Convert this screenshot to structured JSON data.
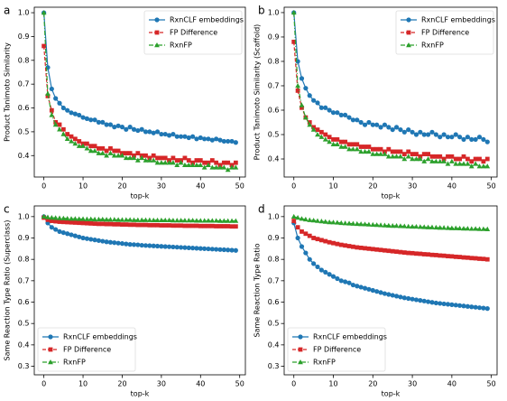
{
  "chart_data": [
    {
      "type": "line",
      "panel": "a",
      "xlabel": "top-k",
      "ylabel": "Product Tanimoto Similarity",
      "x": [
        0,
        1,
        2,
        3,
        4,
        5,
        6,
        7,
        8,
        9,
        10,
        11,
        12,
        13,
        14,
        15,
        16,
        17,
        18,
        19,
        20,
        21,
        22,
        23,
        24,
        25,
        26,
        27,
        28,
        29,
        30,
        31,
        32,
        33,
        34,
        35,
        36,
        37,
        38,
        39,
        40,
        41,
        42,
        43,
        44,
        45,
        46,
        47,
        48,
        49
      ],
      "xlim": [
        -2.45,
        51.45
      ],
      "xticks": [
        0,
        10,
        20,
        30,
        40,
        50
      ],
      "ylim": [
        0.31,
        1.023
      ],
      "yticks": [
        0.4,
        0.5,
        0.6,
        0.7,
        0.8,
        0.9,
        {
          "value": 1,
          "label": "1.0"
        }
      ],
      "legend": "upper right",
      "series": [
        {
          "name": "RxnCLF embeddings",
          "color": "#1f77b4",
          "marker": "circle",
          "dash": "solid",
          "values": [
            1.0,
            0.77,
            0.68,
            0.64,
            0.62,
            0.6,
            0.59,
            0.58,
            0.575,
            0.57,
            0.56,
            0.555,
            0.55,
            0.55,
            0.54,
            0.54,
            0.53,
            0.53,
            0.52,
            0.525,
            0.52,
            0.51,
            0.52,
            0.51,
            0.505,
            0.51,
            0.5,
            0.5,
            0.495,
            0.5,
            0.49,
            0.49,
            0.485,
            0.49,
            0.48,
            0.48,
            0.48,
            0.475,
            0.48,
            0.47,
            0.475,
            0.47,
            0.47,
            0.465,
            0.47,
            0.465,
            0.46,
            0.46,
            0.46,
            0.455
          ]
        },
        {
          "name": "FP Difference",
          "color": "#d62728",
          "marker": "square",
          "dash": "dashed",
          "values": [
            0.86,
            0.65,
            0.59,
            0.54,
            0.53,
            0.51,
            0.49,
            0.48,
            0.47,
            0.46,
            0.45,
            0.45,
            0.44,
            0.44,
            0.43,
            0.43,
            0.42,
            0.43,
            0.42,
            0.42,
            0.41,
            0.41,
            0.41,
            0.4,
            0.41,
            0.4,
            0.4,
            0.39,
            0.4,
            0.39,
            0.39,
            0.39,
            0.38,
            0.39,
            0.38,
            0.38,
            0.39,
            0.38,
            0.37,
            0.38,
            0.38,
            0.37,
            0.37,
            0.38,
            0.37,
            0.36,
            0.37,
            0.37,
            0.36,
            0.37
          ]
        },
        {
          "name": "RxnFP",
          "color": "#2ca02c",
          "marker": "triangle",
          "dash": "dashdot",
          "values": [
            1.0,
            0.66,
            0.57,
            0.53,
            0.51,
            0.49,
            0.47,
            0.46,
            0.45,
            0.44,
            0.44,
            0.43,
            0.42,
            0.42,
            0.41,
            0.41,
            0.4,
            0.41,
            0.4,
            0.4,
            0.4,
            0.39,
            0.39,
            0.39,
            0.38,
            0.39,
            0.38,
            0.38,
            0.38,
            0.37,
            0.37,
            0.37,
            0.37,
            0.37,
            0.36,
            0.37,
            0.36,
            0.36,
            0.36,
            0.36,
            0.36,
            0.35,
            0.36,
            0.35,
            0.35,
            0.35,
            0.35,
            0.34,
            0.35,
            0.35
          ]
        }
      ]
    },
    {
      "type": "line",
      "panel": "b",
      "xlabel": "top-k",
      "ylabel": "Product Tanimoto Similarity (Scaffold)",
      "x": [
        0,
        1,
        2,
        3,
        4,
        5,
        6,
        7,
        8,
        9,
        10,
        11,
        12,
        13,
        14,
        15,
        16,
        17,
        18,
        19,
        20,
        21,
        22,
        23,
        24,
        25,
        26,
        27,
        28,
        29,
        30,
        31,
        32,
        33,
        34,
        35,
        36,
        37,
        38,
        39,
        40,
        41,
        42,
        43,
        44,
        45,
        46,
        47,
        48,
        49
      ],
      "xlim": [
        -2.45,
        51.45
      ],
      "xticks": [
        0,
        10,
        20,
        30,
        40,
        50
      ],
      "ylim": [
        0.326,
        1.022
      ],
      "yticks": [
        0.4,
        0.5,
        0.6,
        0.7,
        0.8,
        0.9,
        {
          "value": 1,
          "label": "1.0"
        }
      ],
      "legend": "upper right",
      "series": [
        {
          "name": "RxnCLF embeddings",
          "color": "#1f77b4",
          "marker": "circle",
          "dash": "solid",
          "values": [
            1.0,
            0.8,
            0.73,
            0.69,
            0.66,
            0.64,
            0.63,
            0.61,
            0.61,
            0.6,
            0.59,
            0.59,
            0.58,
            0.58,
            0.57,
            0.56,
            0.56,
            0.55,
            0.54,
            0.55,
            0.54,
            0.54,
            0.53,
            0.54,
            0.53,
            0.52,
            0.53,
            0.52,
            0.51,
            0.52,
            0.51,
            0.5,
            0.51,
            0.5,
            0.5,
            0.51,
            0.5,
            0.49,
            0.5,
            0.49,
            0.49,
            0.5,
            0.49,
            0.48,
            0.49,
            0.48,
            0.48,
            0.49,
            0.48,
            0.47
          ]
        },
        {
          "name": "FP Difference",
          "color": "#d62728",
          "marker": "square",
          "dash": "dashed",
          "values": [
            0.88,
            0.68,
            0.61,
            0.57,
            0.55,
            0.53,
            0.52,
            0.51,
            0.5,
            0.49,
            0.48,
            0.48,
            0.47,
            0.47,
            0.46,
            0.46,
            0.46,
            0.45,
            0.45,
            0.45,
            0.44,
            0.44,
            0.44,
            0.43,
            0.44,
            0.43,
            0.43,
            0.43,
            0.42,
            0.43,
            0.42,
            0.42,
            0.41,
            0.42,
            0.42,
            0.41,
            0.41,
            0.41,
            0.4,
            0.41,
            0.41,
            0.4,
            0.4,
            0.41,
            0.4,
            0.39,
            0.4,
            0.4,
            0.39,
            0.4
          ]
        },
        {
          "name": "RxnFP",
          "color": "#2ca02c",
          "marker": "triangle",
          "dash": "dashdot",
          "values": [
            1.0,
            0.7,
            0.62,
            0.57,
            0.54,
            0.52,
            0.5,
            0.49,
            0.48,
            0.47,
            0.46,
            0.46,
            0.45,
            0.45,
            0.44,
            0.44,
            0.44,
            0.43,
            0.43,
            0.43,
            0.42,
            0.42,
            0.42,
            0.42,
            0.41,
            0.41,
            0.41,
            0.41,
            0.4,
            0.41,
            0.4,
            0.4,
            0.4,
            0.39,
            0.4,
            0.39,
            0.39,
            0.39,
            0.39,
            0.38,
            0.39,
            0.38,
            0.38,
            0.38,
            0.38,
            0.37,
            0.38,
            0.37,
            0.37,
            0.37
          ]
        }
      ]
    },
    {
      "type": "line",
      "panel": "c",
      "xlabel": "top-k",
      "ylabel": "Same Reaction Type Ratio (Superclass)",
      "x": [
        0,
        1,
        2,
        3,
        4,
        5,
        6,
        7,
        8,
        9,
        10,
        11,
        12,
        13,
        14,
        15,
        16,
        17,
        18,
        19,
        20,
        21,
        22,
        23,
        24,
        25,
        26,
        27,
        28,
        29,
        30,
        31,
        32,
        33,
        34,
        35,
        36,
        37,
        38,
        39,
        40,
        41,
        42,
        43,
        44,
        45,
        46,
        47,
        48,
        49
      ],
      "xlim": [
        -2.45,
        51.45
      ],
      "xticks": [
        0,
        10,
        20,
        30,
        40,
        50
      ],
      "ylim": [
        0.26,
        1.05
      ],
      "yticks": [
        0.3,
        0.4,
        0.5,
        0.6,
        0.7,
        0.8,
        0.9,
        {
          "value": 1,
          "label": "1.0"
        }
      ],
      "legend": "lower left",
      "series": [
        {
          "name": "RxnCLF embeddings",
          "color": "#1f77b4",
          "marker": "circle",
          "dash": "solid",
          "values": [
            1.0,
            0.97,
            0.95,
            0.94,
            0.93,
            0.925,
            0.92,
            0.915,
            0.91,
            0.905,
            0.9,
            0.897,
            0.894,
            0.891,
            0.888,
            0.885,
            0.882,
            0.88,
            0.878,
            0.876,
            0.874,
            0.872,
            0.87,
            0.869,
            0.868,
            0.866,
            0.865,
            0.864,
            0.863,
            0.862,
            0.861,
            0.86,
            0.859,
            0.858,
            0.857,
            0.856,
            0.855,
            0.854,
            0.853,
            0.852,
            0.851,
            0.85,
            0.849,
            0.848,
            0.847,
            0.846,
            0.845,
            0.844,
            0.843,
            0.842
          ]
        },
        {
          "name": "FP Difference",
          "color": "#d62728",
          "marker": "square",
          "dash": "dashed",
          "values": [
            0.995,
            0.985,
            0.98,
            0.978,
            0.976,
            0.975,
            0.974,
            0.973,
            0.972,
            0.971,
            0.97,
            0.969,
            0.968,
            0.967,
            0.966,
            0.966,
            0.965,
            0.965,
            0.964,
            0.964,
            0.963,
            0.963,
            0.962,
            0.962,
            0.961,
            0.961,
            0.961,
            0.96,
            0.96,
            0.96,
            0.959,
            0.959,
            0.959,
            0.958,
            0.958,
            0.958,
            0.957,
            0.957,
            0.957,
            0.957,
            0.956,
            0.956,
            0.956,
            0.956,
            0.955,
            0.955,
            0.955,
            0.955,
            0.954,
            0.954
          ]
        },
        {
          "name": "RxnFP",
          "color": "#2ca02c",
          "marker": "triangle",
          "dash": "dashdot",
          "values": [
            1.0,
            0.997,
            0.995,
            0.994,
            0.993,
            0.992,
            0.991,
            0.99,
            0.99,
            0.989,
            0.989,
            0.988,
            0.988,
            0.987,
            0.987,
            0.987,
            0.986,
            0.986,
            0.986,
            0.985,
            0.985,
            0.985,
            0.985,
            0.984,
            0.984,
            0.984,
            0.984,
            0.984,
            0.983,
            0.983,
            0.983,
            0.983,
            0.983,
            0.982,
            0.982,
            0.982,
            0.982,
            0.982,
            0.982,
            0.981,
            0.981,
            0.981,
            0.981,
            0.981,
            0.981,
            0.98,
            0.98,
            0.98,
            0.98,
            0.98
          ]
        }
      ]
    },
    {
      "type": "line",
      "panel": "d",
      "xlabel": "top-k",
      "ylabel": "Same Reaction Type Ratio",
      "x": [
        0,
        1,
        2,
        3,
        4,
        5,
        6,
        7,
        8,
        9,
        10,
        11,
        12,
        13,
        14,
        15,
        16,
        17,
        18,
        19,
        20,
        21,
        22,
        23,
        24,
        25,
        26,
        27,
        28,
        29,
        30,
        31,
        32,
        33,
        34,
        35,
        36,
        37,
        38,
        39,
        40,
        41,
        42,
        43,
        44,
        45,
        46,
        47,
        48,
        49
      ],
      "xlim": [
        -2.45,
        51.45
      ],
      "xticks": [
        0,
        10,
        20,
        30,
        40,
        50
      ],
      "ylim": [
        0.26,
        1.05
      ],
      "yticks": [
        0.3,
        0.4,
        0.5,
        0.6,
        0.7,
        0.8,
        0.9,
        {
          "value": 1,
          "label": "1.0"
        }
      ],
      "legend": "lower left",
      "series": [
        {
          "name": "RxnCLF embeddings",
          "color": "#1f77b4",
          "marker": "circle",
          "dash": "solid",
          "values": [
            0.97,
            0.9,
            0.86,
            0.83,
            0.8,
            0.78,
            0.765,
            0.75,
            0.74,
            0.73,
            0.72,
            0.71,
            0.7,
            0.695,
            0.69,
            0.68,
            0.675,
            0.67,
            0.665,
            0.66,
            0.655,
            0.65,
            0.645,
            0.64,
            0.636,
            0.632,
            0.628,
            0.624,
            0.62,
            0.617,
            0.614,
            0.611,
            0.608,
            0.605,
            0.602,
            0.599,
            0.596,
            0.594,
            0.592,
            0.59,
            0.588,
            0.586,
            0.584,
            0.582,
            0.58,
            0.578,
            0.576,
            0.574,
            0.572,
            0.57
          ]
        },
        {
          "name": "FP Difference",
          "color": "#d62728",
          "marker": "square",
          "dash": "dashed",
          "values": [
            0.98,
            0.95,
            0.93,
            0.92,
            0.91,
            0.9,
            0.895,
            0.89,
            0.885,
            0.88,
            0.876,
            0.872,
            0.868,
            0.865,
            0.862,
            0.859,
            0.856,
            0.854,
            0.852,
            0.85,
            0.848,
            0.846,
            0.844,
            0.842,
            0.84,
            0.838,
            0.836,
            0.834,
            0.832,
            0.83,
            0.829,
            0.827,
            0.826,
            0.824,
            0.823,
            0.821,
            0.82,
            0.818,
            0.817,
            0.815,
            0.814,
            0.812,
            0.811,
            0.809,
            0.808,
            0.806,
            0.805,
            0.803,
            0.802,
            0.8
          ]
        },
        {
          "name": "RxnFP",
          "color": "#2ca02c",
          "marker": "triangle",
          "dash": "dashdot",
          "values": [
            1.0,
            0.995,
            0.99,
            0.987,
            0.984,
            0.982,
            0.98,
            0.978,
            0.976,
            0.974,
            0.973,
            0.972,
            0.97,
            0.969,
            0.968,
            0.967,
            0.966,
            0.965,
            0.964,
            0.963,
            0.962,
            0.961,
            0.96,
            0.959,
            0.958,
            0.957,
            0.957,
            0.956,
            0.955,
            0.954,
            0.953,
            0.953,
            0.952,
            0.951,
            0.95,
            0.95,
            0.949,
            0.948,
            0.948,
            0.947,
            0.946,
            0.946,
            0.945,
            0.944,
            0.944,
            0.943,
            0.943,
            0.942,
            0.942,
            0.941
          ]
        }
      ]
    }
  ]
}
